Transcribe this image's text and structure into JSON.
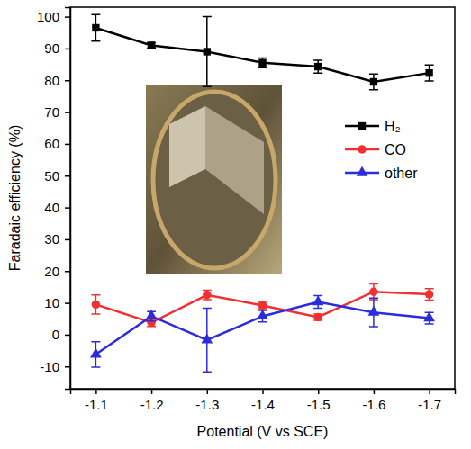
{
  "chart_data": {
    "type": "line",
    "x_label": "Potential (V vs SCE)",
    "y_label": "Faradaic efficiency (%)",
    "categories": [
      "-1.1",
      "-1.2",
      "-1.3",
      "-1.4",
      "-1.5",
      "-1.6",
      "-1.7"
    ],
    "ylim": [
      -17,
      103
    ],
    "yticks": [
      -10,
      0,
      10,
      20,
      30,
      40,
      50,
      60,
      70,
      80,
      90,
      100
    ],
    "legend": "right",
    "series": [
      {
        "name": "H₂",
        "color": "#000000",
        "marker": "square",
        "values": [
          96.5,
          91.0,
          89.0,
          85.5,
          84.3,
          79.5,
          82.3
        ],
        "errors": [
          4.2,
          0.8,
          11.0,
          1.5,
          2.0,
          2.5,
          2.5
        ]
      },
      {
        "name": "CO",
        "color": "#f03030",
        "marker": "circle",
        "values": [
          9.5,
          3.8,
          12.5,
          9.2,
          5.5,
          13.5,
          12.7
        ],
        "errors": [
          3.0,
          1.2,
          1.5,
          1.0,
          1.0,
          2.5,
          1.8
        ]
      },
      {
        "name": "other",
        "color": "#2c2cdd",
        "marker": "triangle",
        "values": [
          -6.2,
          5.8,
          -1.7,
          5.8,
          10.3,
          7.0,
          5.2
        ],
        "errors": [
          4.0,
          1.5,
          10.0,
          1.8,
          2.0,
          4.5,
          1.8
        ]
      }
    ]
  }
}
